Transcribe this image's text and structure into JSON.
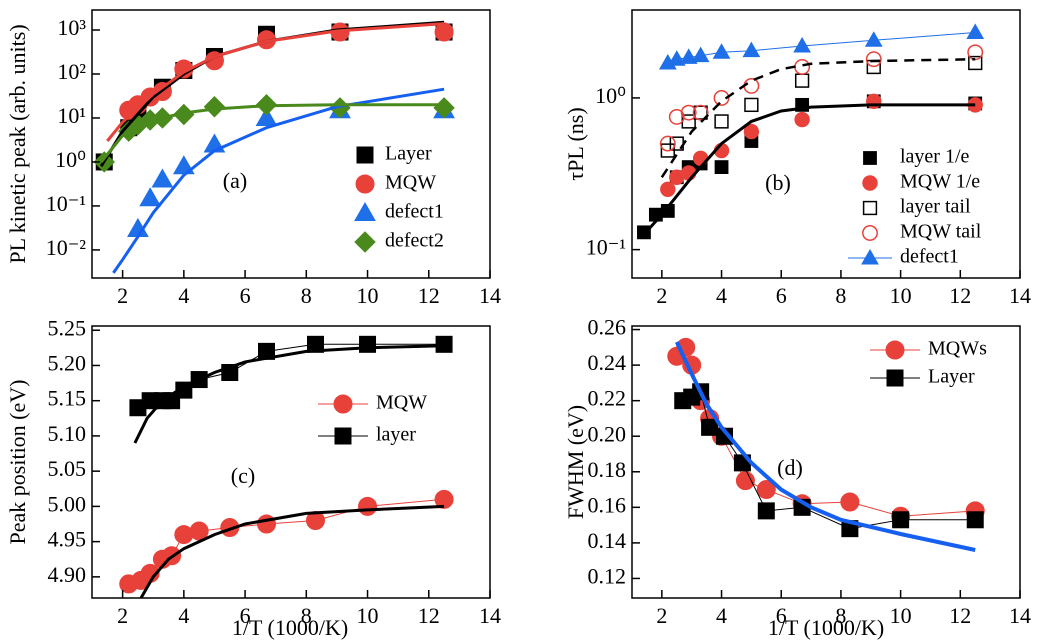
{
  "chart_data": [
    {
      "type": "scatter",
      "ylabel": "PL kinetic peak (arb. units)",
      "annotation": "(a)",
      "ylog": true,
      "xlim": [
        1,
        14
      ],
      "xticks": [
        2,
        4,
        6,
        8,
        10,
        12,
        14
      ],
      "ylim": [
        0.0023,
        2850
      ],
      "yticks": [
        {
          "value": 0.01,
          "label": "10⁻²"
        },
        {
          "value": 0.1,
          "label": "10⁻¹"
        },
        {
          "value": 1,
          "label": "10⁰"
        },
        {
          "value": 10,
          "label": "10¹"
        },
        {
          "value": 100,
          "label": "10²"
        },
        {
          "value": 1000,
          "label": "10³"
        }
      ],
      "series": [
        {
          "name": "Layer",
          "color": "#000000",
          "marker": "square",
          "filled": true,
          "x": [
            1.4,
            2.2,
            2.5,
            3.3,
            4,
            5,
            6.7,
            9.1,
            12.5
          ],
          "values": [
            1.0,
            6,
            10,
            50,
            120,
            250,
            800,
            900,
            900
          ]
        },
        {
          "name": "MQW",
          "color": "#e8413a",
          "marker": "circle",
          "filled": true,
          "x": [
            2.2,
            2.5,
            2.9,
            3.3,
            4,
            5,
            6.7,
            9.1,
            12.5
          ],
          "values": [
            15,
            20,
            30,
            40,
            130,
            200,
            600,
            900,
            900
          ]
        },
        {
          "name": "defect1",
          "color": "#1f6fe8",
          "marker": "triangle",
          "filled": true,
          "x": [
            2.5,
            2.9,
            3.3,
            4,
            5,
            6.7,
            9.1,
            12.5
          ],
          "values": [
            0.03,
            0.15,
            0.4,
            0.8,
            2.5,
            10,
            15,
            15
          ]
        },
        {
          "name": "defect2",
          "color": "#4a8a1c",
          "marker": "diamond",
          "filled": true,
          "x": [
            1.4,
            2.2,
            2.5,
            2.9,
            3.3,
            4,
            5,
            6.7,
            9.1,
            12.5
          ],
          "values": [
            1,
            5,
            7,
            9,
            10,
            12,
            18,
            20,
            17,
            17
          ]
        },
        {
          "color": "#000000",
          "line": "solid",
          "linewidth": 3,
          "x": [
            1.3,
            2,
            3,
            4,
            5,
            6.7,
            9,
            12.5
          ],
          "values": [
            0.8,
            5,
            30,
            100,
            250,
            550,
            1000,
            1500
          ]
        },
        {
          "color": "#e8413a",
          "line": "solid",
          "linewidth": 3,
          "x": [
            1.5,
            2,
            3,
            4,
            5,
            6.7,
            9,
            12.5
          ],
          "values": [
            3,
            8,
            35,
            110,
            250,
            550,
            950,
            1400
          ]
        },
        {
          "color": "#1560f0",
          "line": "solid",
          "linewidth": 3,
          "x": [
            1.7,
            2,
            2.5,
            3,
            4,
            5,
            6.7,
            9,
            12.5
          ],
          "values": [
            0.003,
            0.006,
            0.02,
            0.07,
            0.5,
            1.8,
            6,
            18,
            45
          ]
        },
        {
          "color": "#4a8a1c",
          "line": "solid",
          "linewidth": 3,
          "x": [
            1.3,
            2,
            3,
            4,
            5,
            6.7,
            9,
            12.5
          ],
          "values": [
            1,
            4,
            9,
            13,
            16,
            19,
            20,
            20
          ]
        }
      ]
    },
    {
      "type": "scatter",
      "ylabel": "τPL (ns)",
      "annotation": "(b)",
      "ylog": true,
      "xlim": [
        1,
        14
      ],
      "xticks": [
        2,
        4,
        6,
        8,
        10,
        12,
        14
      ],
      "ylim": [
        0.065,
        3.8
      ],
      "yticks": [
        {
          "value": 0.1,
          "label": "10⁻¹"
        },
        {
          "value": 1,
          "label": "10⁰"
        }
      ],
      "series": [
        {
          "name": "layer 1/e",
          "color": "#000000",
          "marker": "square",
          "filled": true,
          "x": [
            1.4,
            1.8,
            2.2,
            2.5,
            2.9,
            3.3,
            4,
            5,
            6.7,
            9.1,
            12.5
          ],
          "values": [
            0.13,
            0.17,
            0.18,
            0.3,
            0.35,
            0.37,
            0.35,
            0.52,
            0.9,
            0.95,
            0.92
          ]
        },
        {
          "name": "MQW 1/e",
          "color": "#e8413a",
          "marker": "circle",
          "filled": true,
          "x": [
            2.2,
            2.5,
            2.9,
            3.3,
            4,
            5,
            6.7,
            9.1,
            12.5
          ],
          "values": [
            0.25,
            0.3,
            0.32,
            0.4,
            0.45,
            0.6,
            0.72,
            0.95,
            0.9
          ]
        },
        {
          "name": "layer tail",
          "color": "#000000",
          "marker": "square",
          "filled": false,
          "x": [
            2.2,
            2.5,
            2.9,
            3.3,
            4,
            5,
            6.7,
            9.1,
            12.5
          ],
          "values": [
            0.45,
            0.5,
            0.7,
            0.8,
            0.7,
            0.9,
            1.3,
            1.6,
            1.7
          ]
        },
        {
          "name": "MQW tail",
          "color": "#e8413a",
          "marker": "circle",
          "filled": false,
          "x": [
            2.2,
            2.5,
            2.9,
            3.3,
            4,
            5,
            6.7,
            9.1,
            12.5
          ],
          "values": [
            0.5,
            0.75,
            0.8,
            0.8,
            1.0,
            1.2,
            1.6,
            1.8,
            2.0
          ]
        },
        {
          "name": "defect1",
          "color": "#1f6fe8",
          "marker": "triangle",
          "filled": true,
          "line": "solid",
          "linewidth": 1,
          "x": [
            2.2,
            2.5,
            2.9,
            3.3,
            4,
            5,
            6.7,
            9.1,
            12.5
          ],
          "values": [
            1.7,
            1.8,
            1.85,
            1.9,
            2.0,
            2.05,
            2.2,
            2.4,
            2.7
          ]
        },
        {
          "color": "#000000",
          "line": "solid",
          "linewidth": 3,
          "x": [
            1.3,
            2,
            3,
            4,
            5,
            6,
            7,
            9,
            12.5
          ],
          "values": [
            0.12,
            0.17,
            0.3,
            0.5,
            0.7,
            0.82,
            0.87,
            0.9,
            0.9
          ]
        },
        {
          "color": "#000000",
          "line": "dashed",
          "linewidth": 2.5,
          "x": [
            2,
            3,
            4,
            5,
            6,
            7,
            9,
            12.5
          ],
          "values": [
            0.3,
            0.6,
            0.95,
            1.3,
            1.55,
            1.68,
            1.75,
            1.8
          ]
        }
      ]
    },
    {
      "type": "scatter",
      "xlabel": "1/T (1000/K)",
      "ylabel": "Peak position (eV)",
      "annotation": "(c)",
      "xlim": [
        1,
        14
      ],
      "xticks": [
        2,
        4,
        6,
        8,
        10,
        12,
        14
      ],
      "ylim": [
        4.87,
        5.256
      ],
      "yticks": [
        {
          "value": 4.9,
          "label": "4.90"
        },
        4.95,
        {
          "value": 5.0,
          "label": "5.00"
        },
        5.05,
        {
          "value": 5.1,
          "label": "5.10"
        },
        5.15,
        {
          "value": 5.2,
          "label": "5.20"
        },
        5.25
      ],
      "series": [
        {
          "name": "MQW",
          "color": "#e8413a",
          "marker": "circle",
          "filled": true,
          "line": "solid",
          "linewidth": 1,
          "x": [
            2.2,
            2.6,
            2.9,
            3.3,
            3.6,
            4,
            4.5,
            5.5,
            6.7,
            8.3,
            10,
            12.5
          ],
          "values": [
            4.89,
            4.895,
            4.905,
            4.925,
            4.93,
            4.96,
            4.965,
            4.97,
            4.975,
            4.98,
            5.0,
            5.01
          ]
        },
        {
          "name": "layer",
          "color": "#000000",
          "marker": "square",
          "filled": true,
          "line": "solid",
          "linewidth": 1,
          "x": [
            2.5,
            2.9,
            3.3,
            3.6,
            4,
            4.5,
            5.5,
            6.7,
            8.3,
            10,
            12.5
          ],
          "values": [
            5.14,
            5.15,
            5.15,
            5.15,
            5.165,
            5.18,
            5.19,
            5.22,
            5.23,
            5.23,
            5.23
          ]
        },
        {
          "color": "#000000",
          "line": "solid",
          "linewidth": 3,
          "x": [
            2.4,
            2.8,
            3.3,
            4,
            5,
            6,
            8,
            10,
            12.5
          ],
          "values": [
            5.09,
            5.125,
            5.15,
            5.17,
            5.19,
            5.205,
            5.22,
            5.225,
            5.228
          ]
        },
        {
          "color": "#000000",
          "line": "solid",
          "linewidth": 3,
          "x": [
            2.6,
            3,
            3.5,
            4,
            5,
            6,
            8,
            10,
            12.5
          ],
          "values": [
            4.87,
            4.9,
            4.925,
            4.94,
            4.96,
            4.975,
            4.99,
            4.995,
            5.0
          ]
        }
      ]
    },
    {
      "type": "scatter",
      "xlabel": "1/T (1000/K)",
      "ylabel": "FWHM (eV)",
      "annotation": "(d)",
      "xlim": [
        1,
        14
      ],
      "xticks": [
        2,
        4,
        6,
        8,
        10,
        12,
        14
      ],
      "ylim": [
        0.109,
        0.262
      ],
      "yticks": [
        0.12,
        0.14,
        0.16,
        0.18,
        {
          "value": 0.2,
          "label": "0.20"
        },
        0.22,
        0.24,
        0.26
      ],
      "series": [
        {
          "name": "MQWs",
          "color": "#e8413a",
          "marker": "circle",
          "filled": true,
          "line": "solid",
          "linewidth": 1,
          "x": [
            2.5,
            2.8,
            3.0,
            3.3,
            3.6,
            4,
            4.8,
            5.5,
            6.7,
            8.3,
            10,
            12.5
          ],
          "values": [
            0.245,
            0.25,
            0.24,
            0.22,
            0.21,
            0.2,
            0.175,
            0.17,
            0.162,
            0.163,
            0.155,
            0.158
          ]
        },
        {
          "name": "Layer",
          "color": "#000000",
          "marker": "square",
          "filled": true,
          "line": "solid",
          "linewidth": 1,
          "x": [
            2.7,
            3,
            3.3,
            3.6,
            4.1,
            4.7,
            5.5,
            6.7,
            8.3,
            10,
            12.5
          ],
          "values": [
            0.22,
            0.222,
            0.225,
            0.205,
            0.2,
            0.185,
            0.158,
            0.16,
            0.148,
            0.153,
            0.153
          ]
        },
        {
          "color": "#1560f0",
          "line": "solid",
          "linewidth": 4,
          "x": [
            2.5,
            3,
            3.5,
            4,
            5,
            6,
            7,
            8,
            10,
            12.5
          ],
          "values": [
            0.253,
            0.235,
            0.218,
            0.205,
            0.185,
            0.17,
            0.16,
            0.153,
            0.145,
            0.136
          ]
        }
      ]
    }
  ]
}
